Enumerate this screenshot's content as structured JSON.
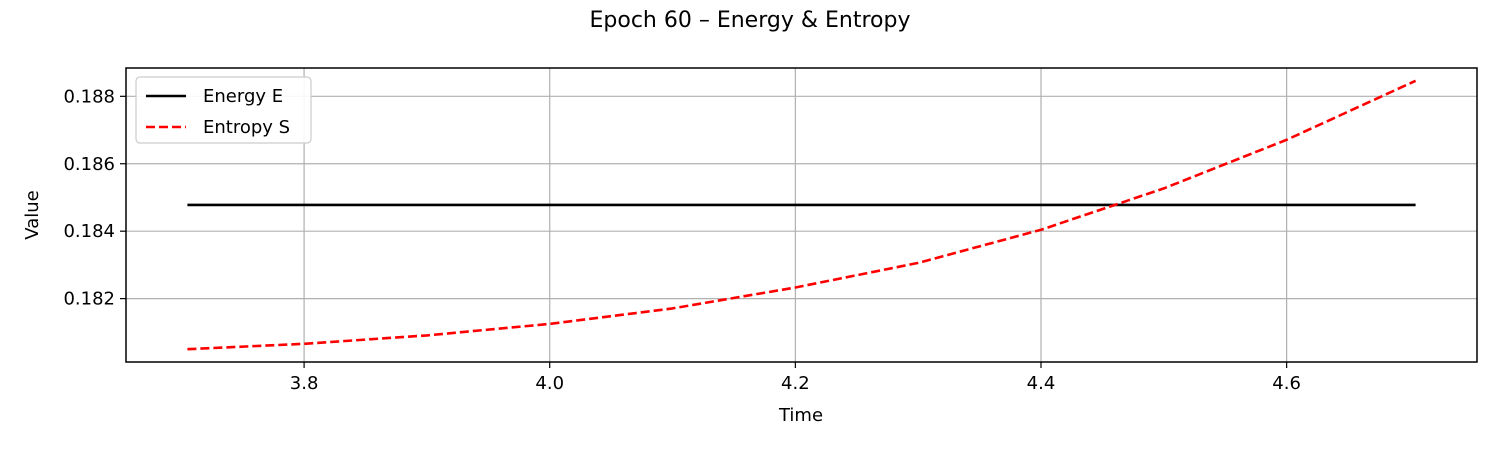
{
  "chart_data": {
    "type": "line",
    "title": "Epoch 60 – Energy & Entropy",
    "xlabel": "Time",
    "ylabel": "Value",
    "xlim": [
      3.655,
      4.755
    ],
    "ylim": [
      0.18012,
      0.18884
    ],
    "xticks": [
      3.8,
      4.0,
      4.2,
      4.4,
      4.6
    ],
    "xtick_labels": [
      "3.8",
      "4.0",
      "4.2",
      "4.4",
      "4.6"
    ],
    "yticks": [
      0.182,
      0.184,
      0.186,
      0.188
    ],
    "ytick_labels": [
      "0.182",
      "0.184",
      "0.186",
      "0.188"
    ],
    "grid": true,
    "legend_position": "upper-left",
    "series": [
      {
        "name": "Energy E",
        "color": "#000000",
        "linestyle": "solid",
        "x": [
          3.705,
          3.8,
          3.9,
          4.0,
          4.1,
          4.2,
          4.3,
          4.4,
          4.5,
          4.6,
          4.705
        ],
        "y": [
          0.18478,
          0.18478,
          0.18478,
          0.18478,
          0.18478,
          0.18478,
          0.18478,
          0.18478,
          0.18478,
          0.18478,
          0.18478
        ]
      },
      {
        "name": "Entropy S",
        "color": "#ff0000",
        "linestyle": "dashed",
        "x": [
          3.705,
          3.8,
          3.9,
          4.0,
          4.1,
          4.2,
          4.3,
          4.4,
          4.5,
          4.6,
          4.705
        ],
        "y": [
          0.1805,
          0.18066,
          0.18091,
          0.18125,
          0.18171,
          0.18233,
          0.18306,
          0.18404,
          0.18527,
          0.18671,
          0.18846
        ]
      }
    ]
  }
}
